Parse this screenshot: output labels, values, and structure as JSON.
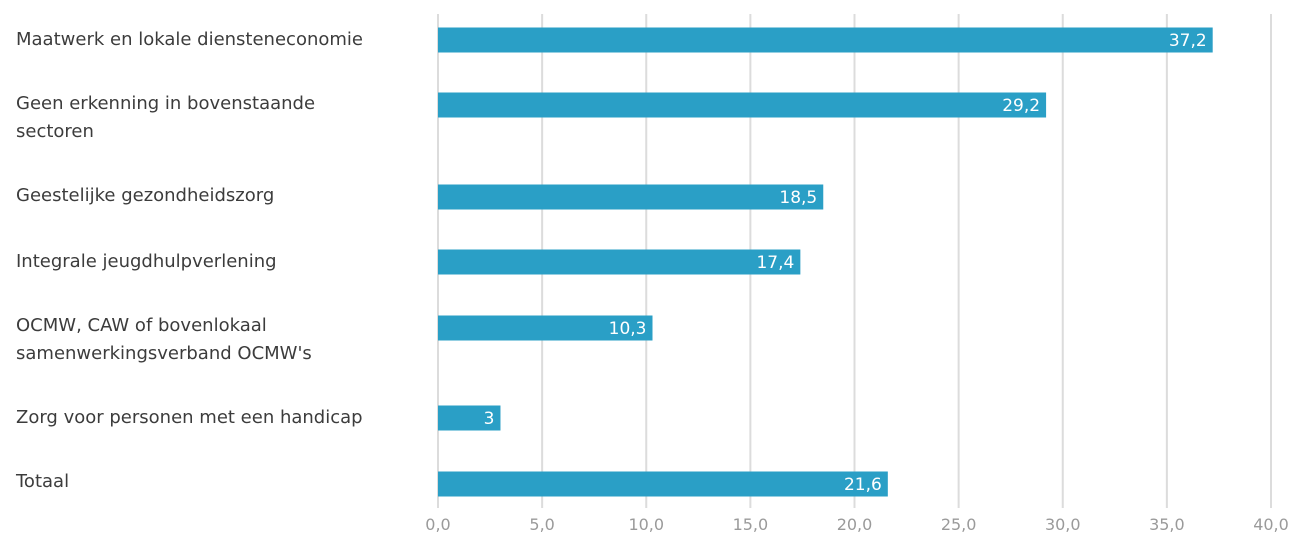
{
  "chart_data": {
    "type": "bar",
    "orientation": "horizontal",
    "categories": [
      "Maatwerk en lokale diensteneconomie",
      "Geen erkenning in bovenstaande sectoren",
      "Geestelijke gezondheidszorg",
      "Integrale jeugdhulpverlening",
      "OCMW, CAW of bovenlokaal samenwerkingsverband OCMW's",
      "Zorg voor personen met een handicap",
      "Totaal"
    ],
    "values": [
      37.2,
      29.2,
      18.5,
      17.4,
      10.3,
      3,
      21.6
    ],
    "value_labels": [
      "37,2",
      "29,2",
      "18,5",
      "17,4",
      "10,3",
      "3",
      "21,6"
    ],
    "x_ticks": [
      "0,0",
      "5,0",
      "10,0",
      "15,0",
      "20,0",
      "25,0",
      "30,0",
      "35,0",
      "40,0"
    ],
    "xlim": [
      0,
      40
    ],
    "grid": true,
    "colors": {
      "bar": "#2a9fc6",
      "grid": "#dcdcdc",
      "tick_text": "#9a9a9a",
      "label_text": "#3c3c3c"
    }
  }
}
